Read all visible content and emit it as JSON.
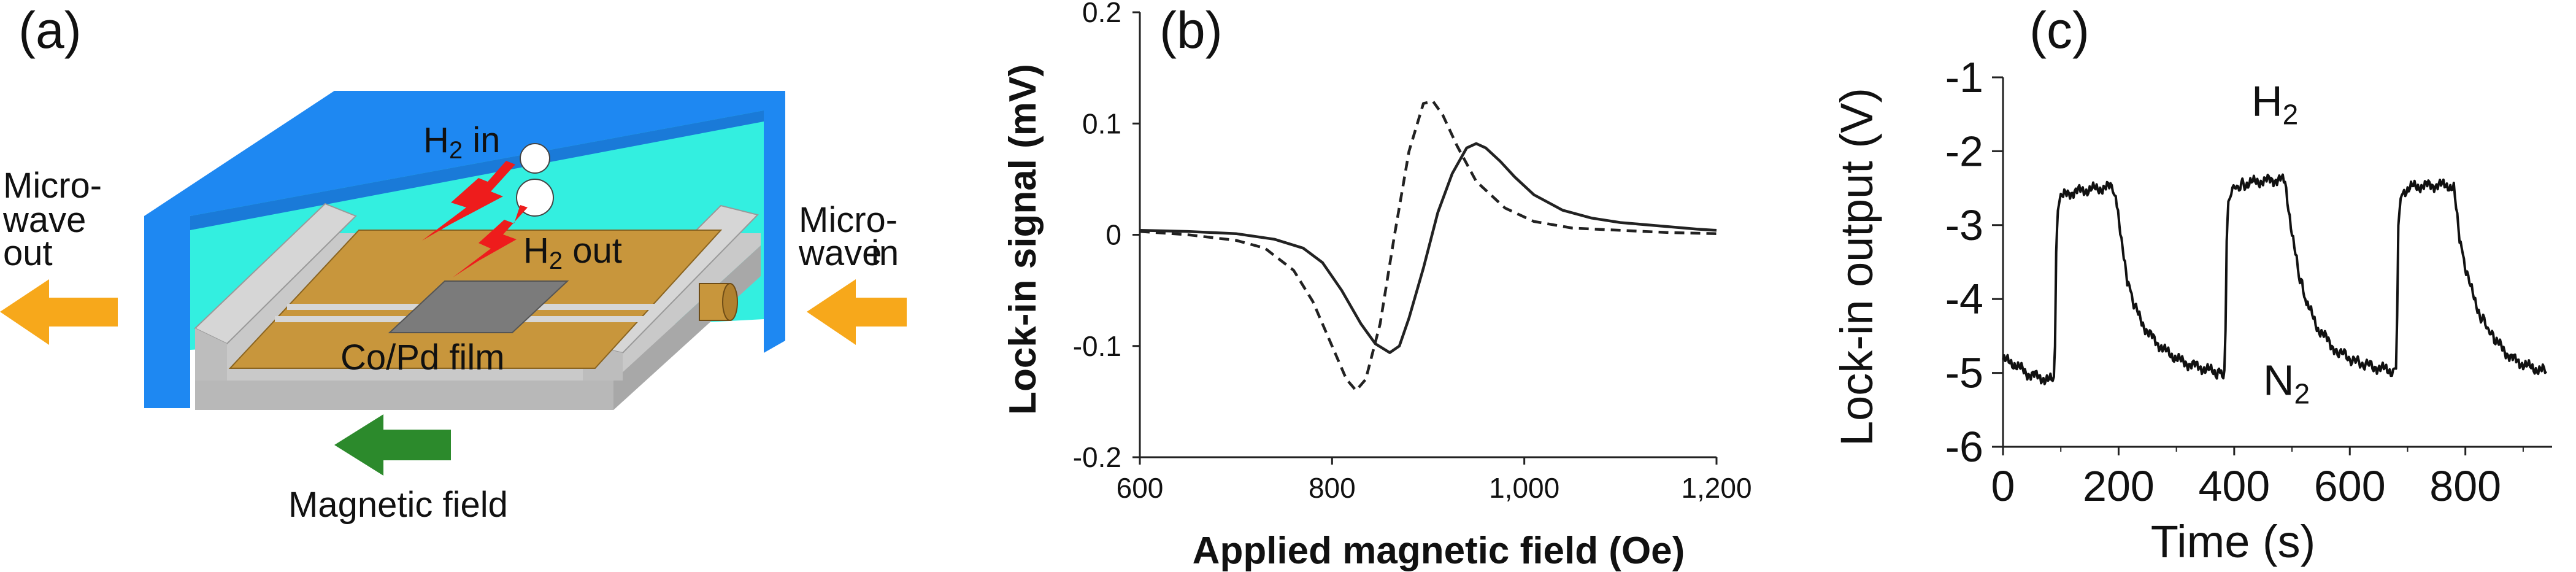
{
  "panel_a": {
    "label": "(a)",
    "h2_in": "H",
    "h2_in_sub": "2",
    "h2_in_suffix": " in",
    "h2_out": "H",
    "h2_out_sub": "2",
    "h2_out_suffix": " out",
    "film": "Co/Pd film",
    "mw_out_1": "Micro-",
    "mw_out_2": "wave",
    "mw_out_3": "out",
    "mw_in_1": "Micro-",
    "mw_in_2": "wave",
    "mw_in_3": "in",
    "magnetic_field": "Magnetic field",
    "colors": {
      "cavity_blue": "#1e88f2",
      "cavity_inner": "#33efe0",
      "film_gold": "#c8963c",
      "frame_gray": "#c9c9c9",
      "microwave_arrow": "#f7a81b",
      "field_arrow": "#2c8a2c",
      "gas_arrow": "#ee1c1c",
      "sample_gray": "#7b7b7b"
    },
    "icons": [
      "microwave-out-arrow",
      "microwave-in-arrow",
      "magnetic-field-arrow",
      "h2-in-arrow",
      "h2-out-arrow"
    ]
  },
  "chart_data": [
    {
      "panel": "(b)",
      "type": "line",
      "xlabel": "Applied magnetic field (Oe)",
      "ylabel": "Lock-in signal (mV)",
      "xlim": [
        600,
        1200
      ],
      "ylim": [
        -0.2,
        0.2
      ],
      "xticks": [
        "600",
        "800",
        "1,000",
        "1,200"
      ],
      "xtick_values": [
        600,
        800,
        1000,
        1200
      ],
      "yticks": [
        "0.2",
        "0.1",
        "0",
        "-0.1",
        "-0.2"
      ],
      "ytick_values": [
        0.2,
        0.1,
        0,
        -0.1,
        -0.2
      ],
      "series": [
        {
          "style": "solid",
          "x": [
            600,
            650,
            700,
            740,
            770,
            790,
            810,
            830,
            845,
            860,
            870,
            880,
            895,
            910,
            925,
            940,
            950,
            960,
            975,
            990,
            1010,
            1040,
            1070,
            1100,
            1140,
            1180,
            1200
          ],
          "y": [
            0.004,
            0.003,
            0.001,
            -0.004,
            -0.012,
            -0.025,
            -0.05,
            -0.08,
            -0.098,
            -0.106,
            -0.1,
            -0.075,
            -0.03,
            0.02,
            0.055,
            0.078,
            0.082,
            0.078,
            0.066,
            0.052,
            0.036,
            0.022,
            0.015,
            0.011,
            0.008,
            0.005,
            0.004
          ]
        },
        {
          "style": "dashed",
          "x": [
            600,
            650,
            700,
            730,
            760,
            780,
            800,
            815,
            825,
            835,
            850,
            865,
            880,
            895,
            905,
            915,
            930,
            950,
            980,
            1010,
            1050,
            1100,
            1150,
            1200
          ],
          "y": [
            0.003,
            0.0,
            -0.005,
            -0.012,
            -0.032,
            -0.06,
            -0.1,
            -0.13,
            -0.14,
            -0.13,
            -0.08,
            0.0,
            0.075,
            0.118,
            0.12,
            0.108,
            0.08,
            0.048,
            0.024,
            0.012,
            0.006,
            0.004,
            0.002,
            0.001
          ]
        }
      ]
    },
    {
      "panel": "(c)",
      "type": "line",
      "xlabel": "Time (s)",
      "ylabel": "Lock-in output (V)",
      "xlim": [
        0,
        950
      ],
      "ylim": [
        -6,
        -1
      ],
      "xticks": [
        "0",
        "200",
        "400",
        "600",
        "800"
      ],
      "xtick_values": [
        0,
        200,
        400,
        600,
        800
      ],
      "yticks": [
        "-1",
        "-2",
        "-3",
        "-4",
        "-5",
        "-6"
      ],
      "ytick_values": [
        -1,
        -2,
        -3,
        -4,
        -5,
        -6
      ],
      "annotations": [
        {
          "text": "H",
          "sub": "2",
          "x": 430,
          "y": -1.52
        },
        {
          "text": "N",
          "sub": "2",
          "x": 450,
          "y": -5.3
        }
      ],
      "series": [
        {
          "style": "solid",
          "x": [
            0,
            20,
            40,
            60,
            80,
            88,
            90,
            92,
            95,
            100,
            120,
            150,
            170,
            190,
            195,
            205,
            215,
            230,
            250,
            280,
            310,
            340,
            370,
            383,
            385,
            387,
            390,
            395,
            420,
            450,
            480,
            488,
            500,
            510,
            525,
            545,
            575,
            610,
            645,
            675,
            680,
            682,
            684,
            690,
            710,
            740,
            770,
            780,
            790,
            805,
            825,
            850,
            880,
            910,
            940
          ],
          "y": [
            -4.82,
            -4.88,
            -5.0,
            -5.05,
            -5.1,
            -5.1,
            -4.6,
            -3.3,
            -2.8,
            -2.62,
            -2.55,
            -2.52,
            -2.5,
            -2.48,
            -2.55,
            -3.25,
            -3.75,
            -4.15,
            -4.45,
            -4.7,
            -4.85,
            -4.92,
            -5.0,
            -5.0,
            -4.5,
            -3.2,
            -2.7,
            -2.52,
            -2.44,
            -2.4,
            -2.38,
            -2.42,
            -3.1,
            -3.6,
            -4.05,
            -4.4,
            -4.68,
            -4.85,
            -4.92,
            -4.98,
            -4.98,
            -4.3,
            -3.0,
            -2.55,
            -2.48,
            -2.46,
            -2.46,
            -2.5,
            -3.2,
            -3.75,
            -4.2,
            -4.55,
            -4.8,
            -4.92,
            -4.98
          ]
        }
      ]
    }
  ]
}
